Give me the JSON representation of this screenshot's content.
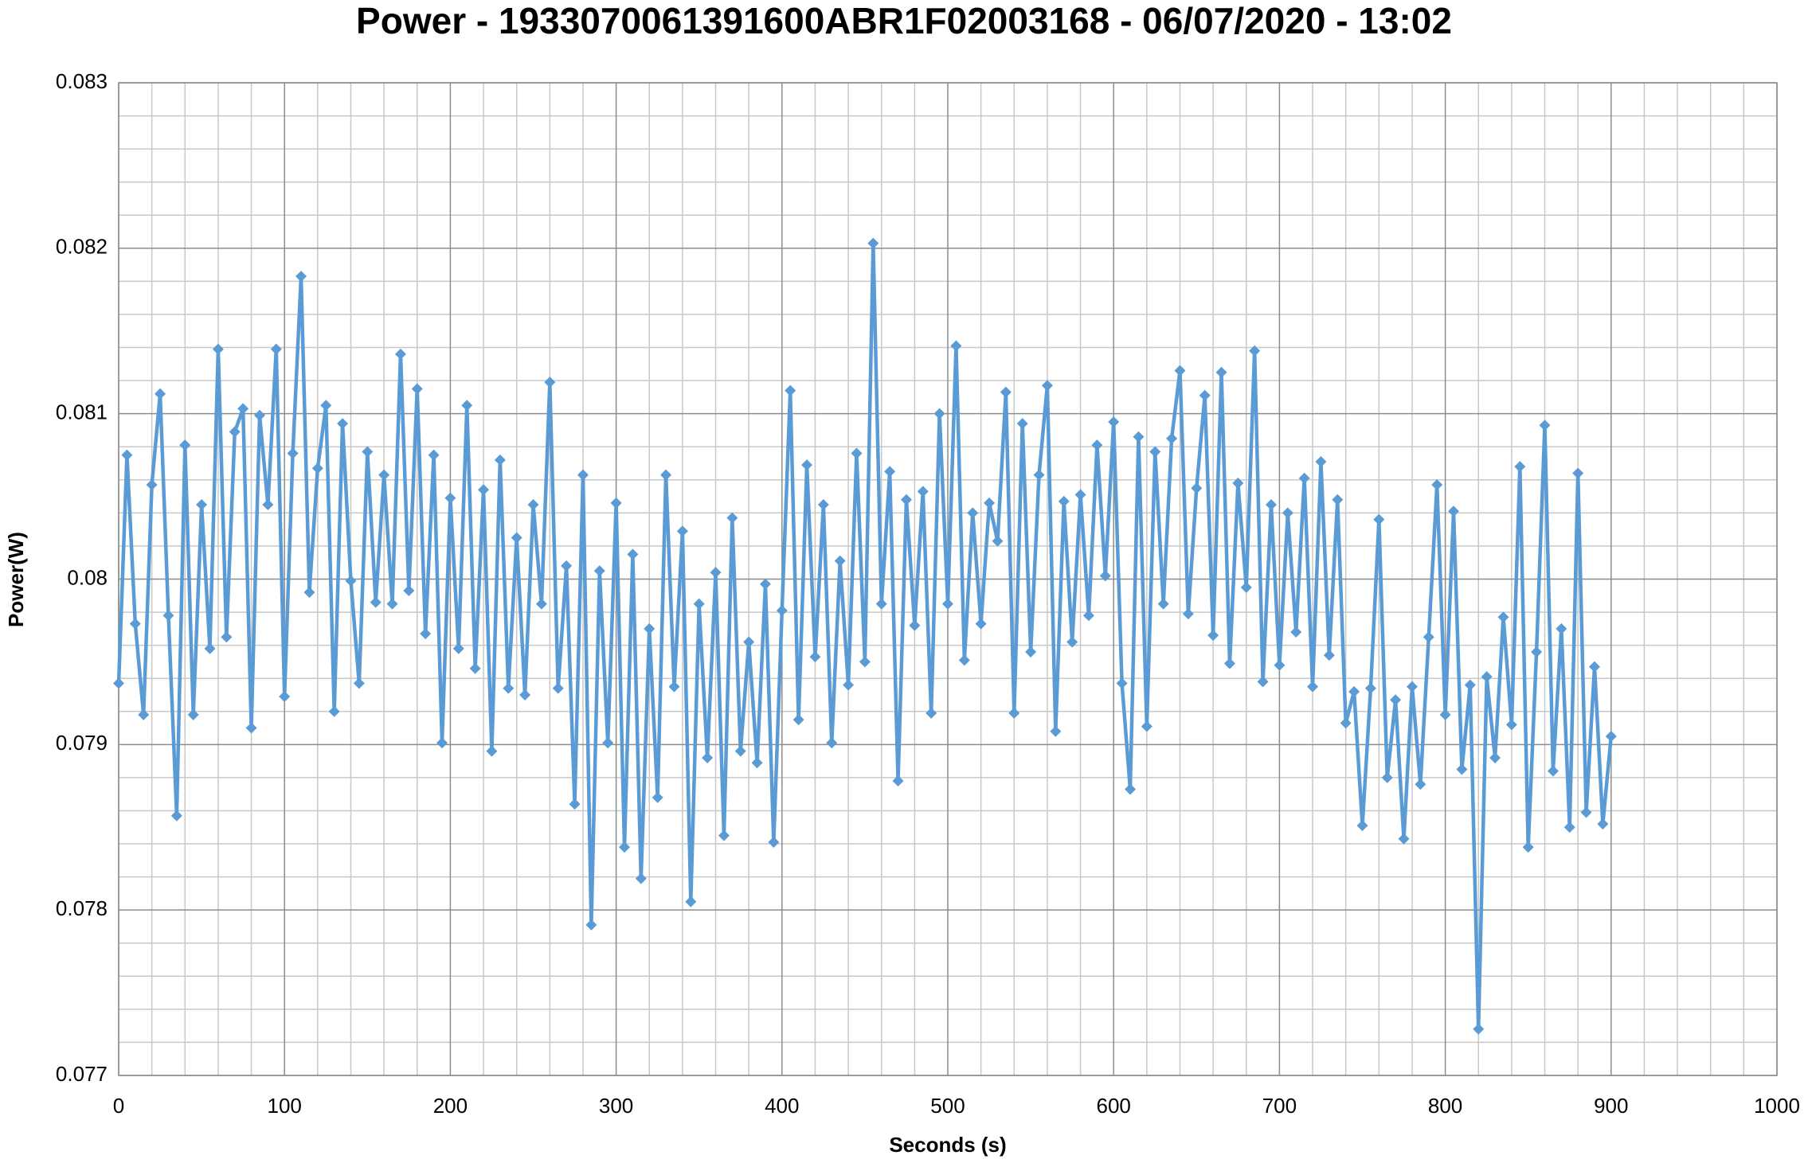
{
  "chart_data": {
    "type": "line",
    "title": "Power - 1933070061391600ABR1F02003168 - 06/07/2020 - 13:02",
    "x_label": "Seconds (s)",
    "y_label": "Power(W)",
    "color": "#5b9bd5",
    "marker": "diamond",
    "grid": true,
    "minor_grid": 5,
    "xlim": [
      0,
      1000
    ],
    "xticks": [
      0,
      100,
      200,
      300,
      400,
      500,
      600,
      700,
      800,
      900,
      1000
    ],
    "ylim": [
      0.077,
      0.083
    ],
    "yticks": [
      0.077,
      0.078,
      0.079,
      0.08,
      0.081,
      0.082,
      0.083
    ],
    "x": [
      0,
      5,
      10,
      15,
      20,
      25,
      30,
      35,
      40,
      45,
      50,
      55,
      60,
      65,
      70,
      75,
      80,
      85,
      90,
      95,
      100,
      105,
      110,
      115,
      120,
      125,
      130,
      135,
      140,
      145,
      150,
      155,
      160,
      165,
      170,
      175,
      180,
      185,
      190,
      195,
      200,
      205,
      210,
      215,
      220,
      225,
      230,
      235,
      240,
      245,
      250,
      255,
      260,
      265,
      270,
      275,
      280,
      285,
      290,
      295,
      300,
      305,
      310,
      315,
      320,
      325,
      330,
      335,
      340,
      345,
      350,
      355,
      360,
      365,
      370,
      375,
      380,
      385,
      390,
      395,
      400,
      405,
      410,
      415,
      420,
      425,
      430,
      435,
      440,
      445,
      450,
      455,
      460,
      465,
      470,
      475,
      480,
      485,
      490,
      495,
      500,
      505,
      510,
      515,
      520,
      525,
      530,
      535,
      540,
      545,
      550,
      555,
      560,
      565,
      570,
      575,
      580,
      585,
      590,
      595,
      600,
      605,
      610,
      615,
      620,
      625,
      630,
      635,
      640,
      645,
      650,
      655,
      660,
      665,
      670,
      675,
      680,
      685,
      690,
      695,
      700,
      705,
      710,
      715,
      720,
      725,
      730,
      735,
      740,
      745,
      750,
      755,
      760,
      765,
      770,
      775,
      780,
      785,
      790,
      795,
      800,
      805,
      810,
      815,
      820,
      825,
      830,
      835,
      840,
      845,
      850,
      855,
      860,
      865,
      870,
      875,
      880,
      885,
      890,
      895,
      900
    ],
    "values": [
      0.07937,
      0.08075,
      0.07973,
      0.07918,
      0.08057,
      0.08112,
      0.07978,
      0.07857,
      0.08081,
      0.07918,
      0.08045,
      0.07958,
      0.08139,
      0.07965,
      0.08089,
      0.08103,
      0.0791,
      0.08099,
      0.08045,
      0.08139,
      0.07929,
      0.08076,
      0.08183,
      0.07992,
      0.08067,
      0.08105,
      0.0792,
      0.08094,
      0.07999,
      0.07937,
      0.08077,
      0.07986,
      0.08063,
      0.07985,
      0.08136,
      0.07993,
      0.08115,
      0.07967,
      0.08075,
      0.07901,
      0.08049,
      0.07958,
      0.08105,
      0.07946,
      0.08054,
      0.07896,
      0.08072,
      0.07934,
      0.08025,
      0.0793,
      0.08045,
      0.07985,
      0.08119,
      0.07934,
      0.08008,
      0.07864,
      0.08063,
      0.07791,
      0.08005,
      0.07901,
      0.08046,
      0.07838,
      0.08015,
      0.07819,
      0.0797,
      0.07868,
      0.08063,
      0.07935,
      0.08029,
      0.07805,
      0.07985,
      0.07892,
      0.08004,
      0.07845,
      0.08037,
      0.07896,
      0.07962,
      0.07889,
      0.07997,
      0.07841,
      0.07981,
      0.08114,
      0.07915,
      0.08069,
      0.07953,
      0.08045,
      0.07901,
      0.08011,
      0.07936,
      0.08076,
      0.0795,
      0.08203,
      0.07985,
      0.08065,
      0.07878,
      0.08048,
      0.07972,
      0.08053,
      0.07919,
      0.081,
      0.07985,
      0.08141,
      0.07951,
      0.0804,
      0.07973,
      0.08046,
      0.08023,
      0.08113,
      0.07919,
      0.08094,
      0.07956,
      0.08063,
      0.08117,
      0.07908,
      0.08047,
      0.07962,
      0.08051,
      0.07978,
      0.08081,
      0.08002,
      0.08095,
      0.07937,
      0.07873,
      0.08086,
      0.07911,
      0.08077,
      0.07985,
      0.08085,
      0.08126,
      0.07979,
      0.08055,
      0.08111,
      0.07966,
      0.08125,
      0.07949,
      0.08058,
      0.07995,
      0.08138,
      0.07938,
      0.08045,
      0.07948,
      0.0804,
      0.07968,
      0.08061,
      0.07935,
      0.08071,
      0.07954,
      0.08048,
      0.07913,
      0.07932,
      0.07851,
      0.07934,
      0.08036,
      0.0788,
      0.07927,
      0.07843,
      0.07935,
      0.07876,
      0.07965,
      0.08057,
      0.07918,
      0.08041,
      0.07885,
      0.07936,
      0.07728,
      0.07941,
      0.07892,
      0.07977,
      0.07912,
      0.08068,
      0.07838,
      0.07956,
      0.08093,
      0.07884,
      0.0797,
      0.0785,
      0.08064,
      0.07859,
      0.07947,
      0.07852,
      0.07905
    ]
  }
}
